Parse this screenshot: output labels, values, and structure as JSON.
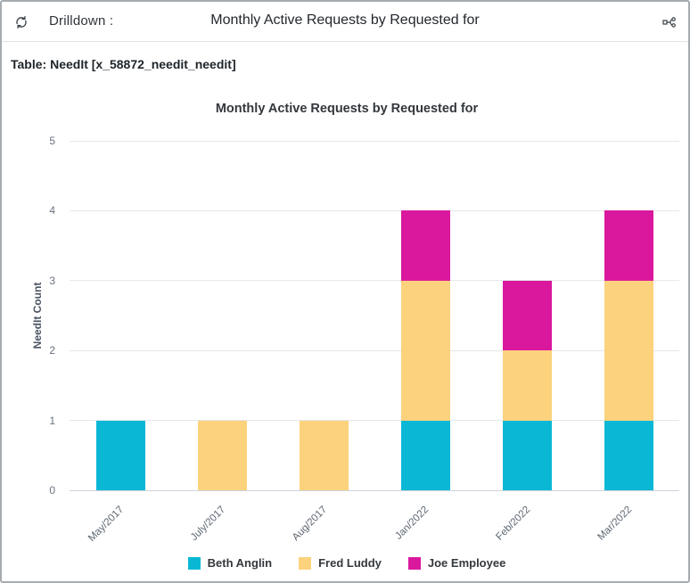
{
  "header": {
    "drilldown_label": "Drilldown :",
    "title": "Monthly Active Requests by Requested for",
    "refresh_icon": "refresh",
    "hierarchy_icon": "drilldown-hierarchy"
  },
  "table_info": "Table: NeedIt [x_58872_needit_needit]",
  "chart_data": {
    "type": "bar",
    "stacked": true,
    "title": "Monthly Active Requests by Requested for",
    "xlabel": "",
    "ylabel": "NeedIt Count",
    "ylim": [
      0,
      5
    ],
    "yticks": [
      0,
      1,
      2,
      3,
      4,
      5
    ],
    "grid": true,
    "legend_position": "bottom",
    "categories": [
      "May/2017",
      "July/2017",
      "Aug/2017",
      "Jan/2022",
      "Feb/2022",
      "Mar/2022"
    ],
    "series": [
      {
        "name": "Beth Anglin",
        "color": "#0ab8d6",
        "values": [
          1,
          0,
          0,
          1,
          1,
          1
        ]
      },
      {
        "name": "Fred Luddy",
        "color": "#fcd27d",
        "values": [
          0,
          1,
          1,
          2,
          1,
          2
        ]
      },
      {
        "name": "Joe Employee",
        "color": "#da189e",
        "values": [
          0,
          0,
          0,
          1,
          1,
          1
        ]
      }
    ]
  },
  "colors": {
    "grid": "#e5e7ea",
    "baseline": "#ccd4db",
    "axis_text": "#6b7280",
    "header_border": "#e2e4e6"
  }
}
